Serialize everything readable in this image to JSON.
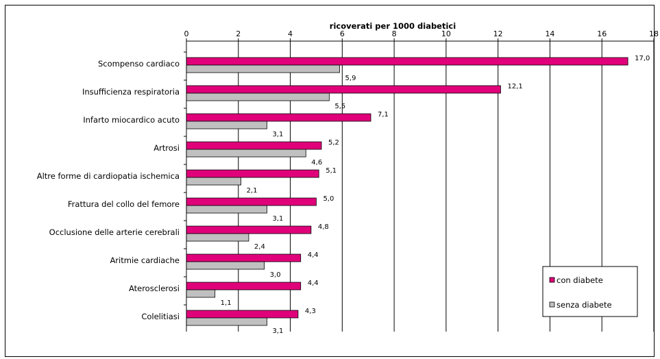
{
  "chart_data": {
    "type": "bar",
    "orientation": "horizontal",
    "title": "ricoverati per 1000 diabetici",
    "xlim": [
      0,
      18
    ],
    "xticks": [
      "0",
      "2",
      "4",
      "6",
      "8",
      "10",
      "12",
      "14",
      "16",
      "18"
    ],
    "grid": "vertical",
    "legend_position": "bottom-right",
    "categories": [
      "Scompenso cardiaco",
      "Insufficienza respiratoria",
      "Infarto miocardico acuto",
      "Artrosi",
      "Altre forme di cardiopatia ischemica",
      "Frattura del collo del femore",
      "Occlusione delle arterie cerebrali",
      "Aritmie cardiache",
      "Aterosclerosi",
      "Colelitiasi"
    ],
    "series": [
      {
        "name": "con diabete",
        "color": "#e0007a",
        "values": [
          17.0,
          12.1,
          7.1,
          5.2,
          5.1,
          5.0,
          4.8,
          4.4,
          4.4,
          4.3
        ],
        "labels": [
          "17,0",
          "12,1",
          "7,1",
          "5,2",
          "5,1",
          "5,0",
          "4,8",
          "4,4",
          "4,4",
          "4,3"
        ]
      },
      {
        "name": "senza diabete",
        "color": "#c0c0c0",
        "values": [
          5.9,
          5.5,
          3.1,
          4.6,
          2.1,
          3.1,
          2.4,
          3.0,
          1.1,
          3.1
        ],
        "labels": [
          "5,9",
          "5,5",
          "3,1",
          "4,6",
          "2,1",
          "3,1",
          "2,4",
          "3,0",
          "1,1",
          "3,1"
        ]
      }
    ]
  }
}
